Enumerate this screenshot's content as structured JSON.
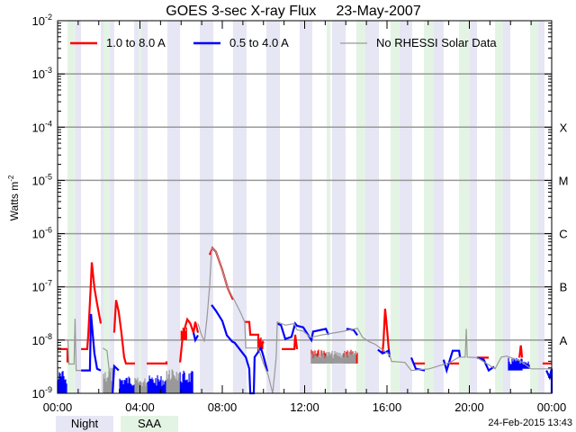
{
  "chart_data": {
    "type": "line",
    "title": "GOES 3-sec X-ray Flux",
    "date": "23-May-2007",
    "ylabel_base": "Watts m",
    "ylabel_exp": "-2",
    "yscale": "log",
    "ylim_log10": [
      -9,
      -2
    ],
    "y_tick_labels": [
      {
        "log10": -2,
        "base": "10",
        "exp": "-2"
      },
      {
        "log10": -3,
        "base": "10",
        "exp": "-3"
      },
      {
        "log10": -4,
        "base": "10",
        "exp": "-4"
      },
      {
        "log10": -5,
        "base": "10",
        "exp": "-5"
      },
      {
        "log10": -6,
        "base": "10",
        "exp": "-6"
      },
      {
        "log10": -7,
        "base": "10",
        "exp": "-7"
      },
      {
        "log10": -8,
        "base": "10",
        "exp": "-8"
      },
      {
        "log10": -9,
        "base": "10",
        "exp": "-9"
      }
    ],
    "flare_classes": [
      {
        "label": "X",
        "log10": -4
      },
      {
        "label": "M",
        "log10": -5
      },
      {
        "label": "C",
        "log10": -6
      },
      {
        "label": "B",
        "log10": -7
      },
      {
        "label": "A",
        "log10": -8
      }
    ],
    "xlim_hours": [
      0,
      24
    ],
    "x_tick_labels": [
      {
        "hour": 0,
        "label": "00:00"
      },
      {
        "hour": 4,
        "label": "04:00"
      },
      {
        "hour": 8,
        "label": "08:00"
      },
      {
        "hour": 12,
        "label": "12:00"
      },
      {
        "hour": 16,
        "label": "16:00"
      },
      {
        "hour": 20,
        "label": "20:00"
      },
      {
        "hour": 24,
        "label": "00:00"
      }
    ],
    "grid": true,
    "legend_position": "top-left",
    "night_intervals_hours": [
      [
        0.87,
        1.14
      ],
      [
        2.1,
        2.23
      ],
      [
        2.54,
        2.75
      ],
      [
        3.72,
        3.93
      ],
      [
        4.07,
        4.37
      ],
      [
        5.33,
        5.95
      ],
      [
        6.91,
        7.56
      ],
      [
        8.52,
        9.18
      ],
      [
        10.14,
        10.8
      ],
      [
        11.76,
        12.37
      ],
      [
        13.33,
        13.99
      ],
      [
        14.95,
        15.61
      ],
      [
        16.61,
        17.22
      ],
      [
        18.27,
        18.75
      ],
      [
        20.02,
        20.37
      ],
      [
        21.64,
        21.99
      ],
      [
        23.34,
        23.65
      ]
    ],
    "saa_intervals_hours": [
      [
        0.48,
        0.87
      ],
      [
        2.23,
        2.54
      ],
      [
        3.93,
        4.07
      ],
      [
        13.07,
        13.25
      ],
      [
        14.51,
        14.95
      ],
      [
        16.17,
        16.61
      ],
      [
        17.79,
        18.27
      ],
      [
        19.5,
        20.02
      ],
      [
        21.25,
        21.64
      ],
      [
        22.95,
        23.34
      ]
    ],
    "series": [
      {
        "name": "1.0 to 8.0 A",
        "color": "#ff0000",
        "points_hour_log10flux": [
          [
            0,
            -8.17
          ],
          [
            0.48,
            -8.17
          ],
          [
            0.48,
            -8.42
          ],
          null,
          [
            1.14,
            -8.17
          ],
          [
            1.44,
            -8.17
          ],
          [
            1.49,
            -7.9
          ],
          [
            1.62,
            -6.9
          ],
          [
            1.66,
            -6.54
          ],
          [
            1.79,
            -7.02
          ],
          [
            1.92,
            -7.32
          ],
          [
            2.1,
            -7.69
          ],
          null,
          [
            2.75,
            -7.86
          ],
          [
            2.84,
            -7.25
          ],
          [
            2.97,
            -7.47
          ],
          [
            3.1,
            -7.86
          ],
          [
            3.23,
            -8.32
          ],
          [
            3.32,
            -8.44
          ],
          [
            3.76,
            -8.44
          ],
          null,
          [
            4.33,
            -8.44
          ],
          [
            5.29,
            -8.44
          ],
          [
            5.29,
            -8.4
          ],
          null,
          [
            5.95,
            -8.42
          ],
          [
            6.08,
            -7.91
          ],
          [
            6.3,
            -7.61
          ],
          [
            6.45,
            -7.69
          ],
          [
            6.6,
            -7.86
          ],
          [
            6.69,
            -7.66
          ],
          [
            6.82,
            -7.86
          ],
          null,
          [
            7.39,
            -6.4
          ],
          [
            7.52,
            -6.27
          ],
          [
            7.69,
            -6.34
          ],
          [
            8.0,
            -6.68
          ],
          [
            8.26,
            -7.02
          ],
          [
            8.52,
            -7.24
          ],
          null,
          [
            9.09,
            -7.66
          ],
          [
            9.31,
            -7.66
          ],
          [
            9.36,
            -7.9
          ],
          [
            9.75,
            -7.9
          ],
          [
            9.75,
            -8.17
          ],
          [
            10.01,
            -8.03
          ],
          null,
          [
            10.89,
            -8.17
          ],
          [
            11.5,
            -8.17
          ],
          [
            11.54,
            -7.9
          ],
          [
            11.63,
            -8.17
          ],
          null,
          [
            15.78,
            -8.25
          ],
          [
            15.83,
            -8.03
          ],
          [
            15.91,
            -7.41
          ],
          [
            16.0,
            -7.79
          ],
          [
            16.09,
            -8.2
          ],
          null,
          [
            17.31,
            -8.44
          ],
          [
            17.84,
            -8.44
          ],
          null,
          [
            19.06,
            -8.44
          ],
          [
            19.5,
            -8.44
          ],
          null,
          [
            20.37,
            -8.33
          ],
          [
            20.94,
            -8.33
          ],
          null,
          [
            22.43,
            -8.33
          ],
          [
            22.5,
            -8.1
          ],
          [
            22.56,
            -8.33
          ],
          null,
          [
            23.56,
            -8.44
          ],
          [
            24,
            -8.44
          ]
        ],
        "envelopes_hour_range_log10": [
          [
            6.0,
            6.3,
            -8.0,
            -7.75
          ],
          [
            9.75,
            10.01,
            -8.17,
            -7.9
          ],
          [
            12.33,
            13.07,
            -8.44,
            -8.17
          ],
          [
            13.25,
            13.4,
            -8.44,
            -8.4
          ],
          [
            13.9,
            14.56,
            -8.44,
            -8.17
          ]
        ]
      },
      {
        "name": "0.5 to 4.0 A",
        "color": "#0000ff",
        "points_hour_log10flux": [
          [
            1.14,
            -8.57
          ],
          [
            1.57,
            -8.57
          ],
          [
            1.62,
            -7.51
          ],
          [
            1.79,
            -8.25
          ],
          [
            1.92,
            -8.54
          ],
          [
            2.1,
            -8.57
          ],
          null,
          [
            2.67,
            -9.0
          ],
          [
            2.75,
            -8.49
          ],
          [
            2.97,
            -8.57
          ],
          null,
          [
            6.6,
            -7.86
          ],
          [
            6.69,
            -8.0
          ],
          [
            6.82,
            -7.91
          ],
          null,
          [
            7.48,
            -7.34
          ],
          [
            7.69,
            -7.45
          ],
          [
            8.0,
            -7.64
          ],
          [
            8.22,
            -7.91
          ],
          [
            8.48,
            -8.03
          ],
          [
            8.6,
            -8.05
          ],
          [
            9.14,
            -8.32
          ],
          [
            9.31,
            -8.54
          ],
          [
            9.36,
            -9.0
          ],
          [
            9.53,
            -9.0
          ],
          [
            9.57,
            -8.32
          ],
          [
            9.88,
            -8.15
          ],
          [
            10.01,
            -8.32
          ],
          [
            10.19,
            -8.59
          ],
          null,
          [
            10.67,
            -7.69
          ],
          [
            10.85,
            -7.72
          ],
          [
            11.06,
            -7.98
          ],
          [
            11.36,
            -7.94
          ],
          [
            11.54,
            -7.69
          ],
          [
            11.63,
            -7.73
          ],
          [
            11.93,
            -7.76
          ],
          [
            12.33,
            -8.0
          ],
          [
            12.41,
            -7.84
          ],
          [
            13.03,
            -7.79
          ],
          [
            13.16,
            -7.9
          ],
          null,
          [
            14.03,
            -7.79
          ],
          [
            14.38,
            -7.81
          ],
          [
            14.56,
            -7.91
          ],
          null,
          [
            15.56,
            -8.18
          ],
          [
            15.78,
            -8.25
          ],
          [
            16.09,
            -8.2
          ],
          [
            16.13,
            -8.32
          ],
          null,
          [
            17.18,
            -8.33
          ],
          [
            17.4,
            -8.54
          ],
          [
            17.84,
            -8.57
          ],
          null,
          [
            18.75,
            -8.37
          ],
          [
            18.9,
            -8.57
          ],
          [
            19.19,
            -8.2
          ],
          [
            19.5,
            -8.2
          ],
          [
            19.55,
            -8.33
          ],
          null,
          [
            20.37,
            -8.33
          ],
          [
            20.7,
            -8.37
          ],
          [
            20.94,
            -8.57
          ],
          [
            21.2,
            -8.5
          ],
          null,
          [
            23.74,
            -8.57
          ],
          [
            23.9,
            -8.7
          ],
          [
            24,
            -8.54
          ],
          [
            24,
            -9.0
          ]
        ],
        "envelopes_hour_range_log10": [
          [
            0,
            0.48,
            -9.0,
            -8.57
          ],
          [
            3.02,
            3.76,
            -9.0,
            -8.66
          ],
          [
            4.33,
            5.29,
            -9.0,
            -8.66
          ],
          [
            5.95,
            6.6,
            -9.0,
            -8.57
          ],
          [
            21.9,
            22.56,
            -8.57,
            -8.33
          ],
          [
            22.56,
            22.91,
            -8.54,
            -8.4
          ]
        ]
      },
      {
        "name": "No RHESSI Solar Data",
        "color": "#999999",
        "points_hour_log10flux": [
          [
            0.2,
            -8.0
          ],
          [
            0.5,
            -8.0
          ],
          [
            0.55,
            -8.45
          ],
          [
            0.8,
            -8.45
          ],
          [
            0.85,
            -7.6
          ],
          [
            0.9,
            -8.57
          ],
          [
            1.14,
            -8.57
          ],
          null,
          [
            2.2,
            -8.15
          ],
          [
            2.4,
            -8.2
          ],
          [
            2.5,
            -8.55
          ],
          [
            2.6,
            -9.0
          ],
          null,
          [
            6.82,
            -7.69
          ],
          [
            6.95,
            -7.86
          ],
          [
            7.13,
            -8.03
          ],
          [
            7.26,
            -7.57
          ],
          [
            7.39,
            -6.97
          ],
          [
            7.48,
            -6.29
          ],
          [
            7.52,
            -6.27
          ],
          [
            7.69,
            -6.34
          ],
          [
            8.0,
            -6.68
          ],
          [
            8.26,
            -7.02
          ],
          [
            8.57,
            -7.24
          ],
          [
            8.87,
            -7.47
          ],
          [
            9.09,
            -7.66
          ],
          [
            9.14,
            -8.15
          ],
          [
            9.75,
            -8.15
          ],
          [
            10.01,
            -8.45
          ],
          [
            10.23,
            -8.66
          ],
          [
            10.45,
            -9.0
          ],
          [
            10.62,
            -8.32
          ],
          [
            10.67,
            -7.66
          ],
          [
            11.06,
            -7.72
          ],
          [
            11.5,
            -7.69
          ],
          [
            11.63,
            -7.81
          ],
          [
            11.93,
            -7.83
          ],
          [
            12.28,
            -7.95
          ],
          [
            12.9,
            -7.9
          ],
          [
            13.81,
            -7.84
          ],
          [
            14.56,
            -7.78
          ],
          [
            14.82,
            -7.95
          ],
          [
            15.13,
            -8.03
          ],
          [
            15.43,
            -8.08
          ],
          [
            16.13,
            -8.28
          ],
          [
            16.22,
            -8.4
          ],
          [
            16.87,
            -8.42
          ],
          [
            17.18,
            -8.57
          ],
          [
            18.05,
            -8.54
          ],
          [
            19.06,
            -8.42
          ],
          [
            19.5,
            -8.32
          ],
          [
            19.8,
            -8.32
          ],
          [
            19.85,
            -7.79
          ],
          [
            19.9,
            -8.32
          ],
          [
            20.37,
            -8.33
          ],
          [
            21.25,
            -8.54
          ],
          [
            21.55,
            -8.32
          ],
          [
            21.81,
            -8.3
          ],
          [
            22.5,
            -8.4
          ],
          [
            23.0,
            -8.54
          ],
          [
            24,
            -8.54
          ]
        ],
        "envelopes_hour_range_log10": [
          [
            2.23,
            2.7,
            -9.0,
            -8.5
          ],
          [
            3.76,
            4.33,
            -9.0,
            -8.7
          ],
          [
            5.3,
            5.95,
            -9.0,
            -8.4
          ],
          [
            12.33,
            14.5,
            -8.44,
            -8.2
          ]
        ]
      }
    ]
  },
  "key": {
    "night": "Night",
    "saa": "SAA",
    "night_color": "#e6e6f4",
    "saa_color": "#e4f4e4"
  },
  "timestamp": "24-Feb-2015 13:43"
}
